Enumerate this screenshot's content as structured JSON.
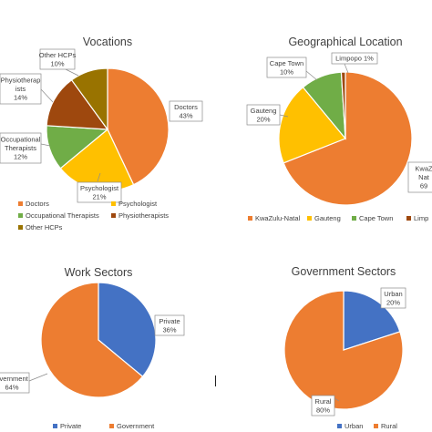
{
  "chart_data": [
    {
      "type": "pie",
      "title": "Vocations",
      "categories": [
        "Doctors",
        "Psychologist",
        "Occupational Therapists",
        "Physiotherapists",
        "Other HCPs"
      ],
      "values": [
        43,
        21,
        12,
        14,
        10
      ],
      "colors": [
        "#ED7D31",
        "#FFC000",
        "#70AD47",
        "#9E480E",
        "#997300"
      ],
      "slice_labels": [
        [
          "Doctors",
          "43%"
        ],
        [
          "Psychologist",
          "21%"
        ],
        [
          "Occupational",
          "Therapists",
          "12%"
        ],
        [
          "Physiotherap",
          "ists",
          "14%"
        ],
        [
          "Other HCPs",
          "10%"
        ]
      ],
      "legend": [
        "Doctors",
        "Psychologist",
        "Occupational Therapists",
        "Physiotherapists",
        "Other HCPs"
      ],
      "legend_position": "bottom"
    },
    {
      "type": "pie",
      "title": "Geographical Location",
      "categories": [
        "KwaZulu-Natal",
        "Gauteng",
        "Cape Town",
        "Limpopo"
      ],
      "values": [
        69,
        20,
        10,
        1
      ],
      "colors": [
        "#ED7D31",
        "#FFC000",
        "#70AD47",
        "#9E480E"
      ],
      "slice_labels": [
        [
          "KwaZ",
          "Nat",
          "69"
        ],
        [
          "Gauteng",
          "20%"
        ],
        [
          "Cape Town",
          "10%"
        ],
        [
          "Limpopo 1%"
        ]
      ],
      "legend": [
        "KwaZulu-Natal",
        "Gauteng",
        "Cape Town",
        "Limp"
      ],
      "legend_position": "bottom"
    },
    {
      "type": "pie",
      "title": "Work Sectors",
      "categories": [
        "Private",
        "Government"
      ],
      "values": [
        36,
        64
      ],
      "colors": [
        "#4472C4",
        "#ED7D31"
      ],
      "slice_labels": [
        [
          "Private",
          "36%"
        ],
        [
          "overnment",
          "64%"
        ]
      ],
      "legend": [
        "Private",
        "Government"
      ],
      "legend_position": "bottom"
    },
    {
      "type": "pie",
      "title": "Government Sectors",
      "categories": [
        "Urban",
        "Rural"
      ],
      "values": [
        20,
        80
      ],
      "colors": [
        "#4472C4",
        "#ED7D31"
      ],
      "slice_labels": [
        [
          "Urban",
          "20%"
        ],
        [
          "Rural",
          "80%"
        ]
      ],
      "legend": [
        "Urban",
        "Rural"
      ],
      "legend_position": "bottom"
    }
  ]
}
